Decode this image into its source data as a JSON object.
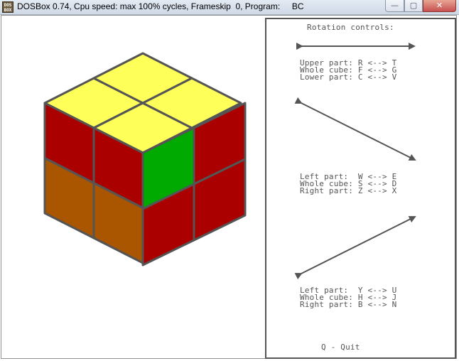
{
  "window": {
    "title": "DOSBox 0.74, Cpu speed: max 100% cycles, Frameskip  0, Program:     BC",
    "icon_label": "DOS BOX",
    "buttons": {
      "minimize": "—",
      "maximize": "▢",
      "close": "✕"
    }
  },
  "cube": {
    "colors": {
      "yellow": "#ffff5a",
      "red": "#aa0000",
      "green": "#00aa00",
      "orange": "#aa5500",
      "edge": "#555555"
    },
    "top": [
      "yellow",
      "yellow",
      "yellow",
      "yellow"
    ],
    "left": [
      "red",
      "red",
      "orange",
      "orange"
    ],
    "right": [
      "green",
      "red",
      "red",
      "red"
    ]
  },
  "controls": {
    "title": "Rotation controls:",
    "group1": [
      {
        "label": "Upper part:",
        "keys": "R <--> T"
      },
      {
        "label": "Whole cube:",
        "keys": "F <--> G"
      },
      {
        "label": "Lower part:",
        "keys": "C <--> V"
      }
    ],
    "group2": [
      {
        "label": "Left part: ",
        "keys": "W <--> E"
      },
      {
        "label": "Whole cube:",
        "keys": "S <--> D"
      },
      {
        "label": "Right part:",
        "keys": "Z <--> X"
      }
    ],
    "group3": [
      {
        "label": "Left part: ",
        "keys": "Y <--> U"
      },
      {
        "label": "Whole cube:",
        "keys": "H <--> J"
      },
      {
        "label": "Right part:",
        "keys": "B <--> N"
      }
    ],
    "quit": "Q - Quit"
  }
}
